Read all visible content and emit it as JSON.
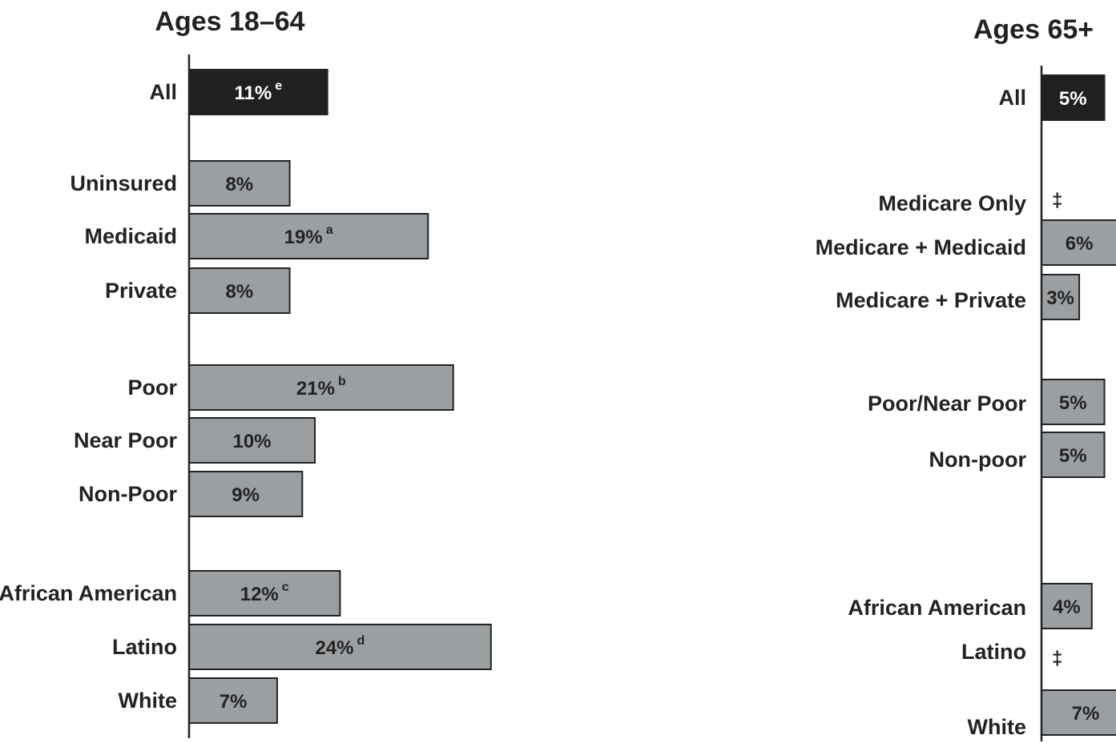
{
  "chart_data": [
    {
      "type": "bar",
      "orientation": "horizontal",
      "title": "Ages 18–64",
      "xlim": [
        0,
        25
      ],
      "colors": {
        "all": "#221f20",
        "group": "#9c9fa2",
        "outline": "#222222"
      },
      "items": [
        {
          "label": "All",
          "value": 11,
          "display": "11%",
          "note": "e",
          "kind": "all"
        },
        {
          "label": "Uninsured",
          "value": 8,
          "display": "8%",
          "note": "",
          "kind": "group"
        },
        {
          "label": "Medicaid",
          "value": 19,
          "display": "19%",
          "note": "a",
          "kind": "group"
        },
        {
          "label": "Private",
          "value": 8,
          "display": "8%",
          "note": "",
          "kind": "group"
        },
        {
          "label": "Poor",
          "value": 21,
          "display": "21%",
          "note": "b",
          "kind": "group"
        },
        {
          "label": "Near Poor",
          "value": 10,
          "display": "10%",
          "note": "",
          "kind": "group"
        },
        {
          "label": "Non-Poor",
          "value": 9,
          "display": "9%",
          "note": "",
          "kind": "group"
        },
        {
          "label": "African American",
          "value": 12,
          "display": "12%",
          "note": "c",
          "kind": "group"
        },
        {
          "label": "Latino",
          "value": 24,
          "display": "24%",
          "note": "d",
          "kind": "group"
        },
        {
          "label": "White",
          "value": 7,
          "display": "7%",
          "note": "",
          "kind": "group"
        }
      ]
    },
    {
      "type": "bar",
      "orientation": "horizontal",
      "title": "Ages 65+",
      "xlim": [
        0,
        25
      ],
      "colors": {
        "all": "#221f20",
        "group": "#9c9fa2",
        "outline": "#222222"
      },
      "items": [
        {
          "label": "All",
          "value": 5,
          "display": "5%",
          "note": "",
          "kind": "all"
        },
        {
          "label": "Medicare Only",
          "value": null,
          "display": "‡",
          "note": "",
          "kind": "group"
        },
        {
          "label": "Medicare + Medicaid",
          "value": 6,
          "display": "6%",
          "note": "",
          "kind": "group"
        },
        {
          "label": "Medicare + Private",
          "value": 3,
          "display": "3%",
          "note": "",
          "kind": "group"
        },
        {
          "label": "Poor/Near Poor",
          "value": 5,
          "display": "5%",
          "note": "",
          "kind": "group"
        },
        {
          "label": "Non-poor",
          "value": 5,
          "display": "5%",
          "note": "",
          "kind": "group"
        },
        {
          "label": "African American",
          "value": 4,
          "display": "4%",
          "note": "",
          "kind": "group"
        },
        {
          "label": "Latino",
          "value": null,
          "display": "‡",
          "note": "",
          "kind": "group"
        },
        {
          "label": "White",
          "value": 7,
          "display": "7%",
          "note": "",
          "kind": "group"
        }
      ]
    }
  ]
}
